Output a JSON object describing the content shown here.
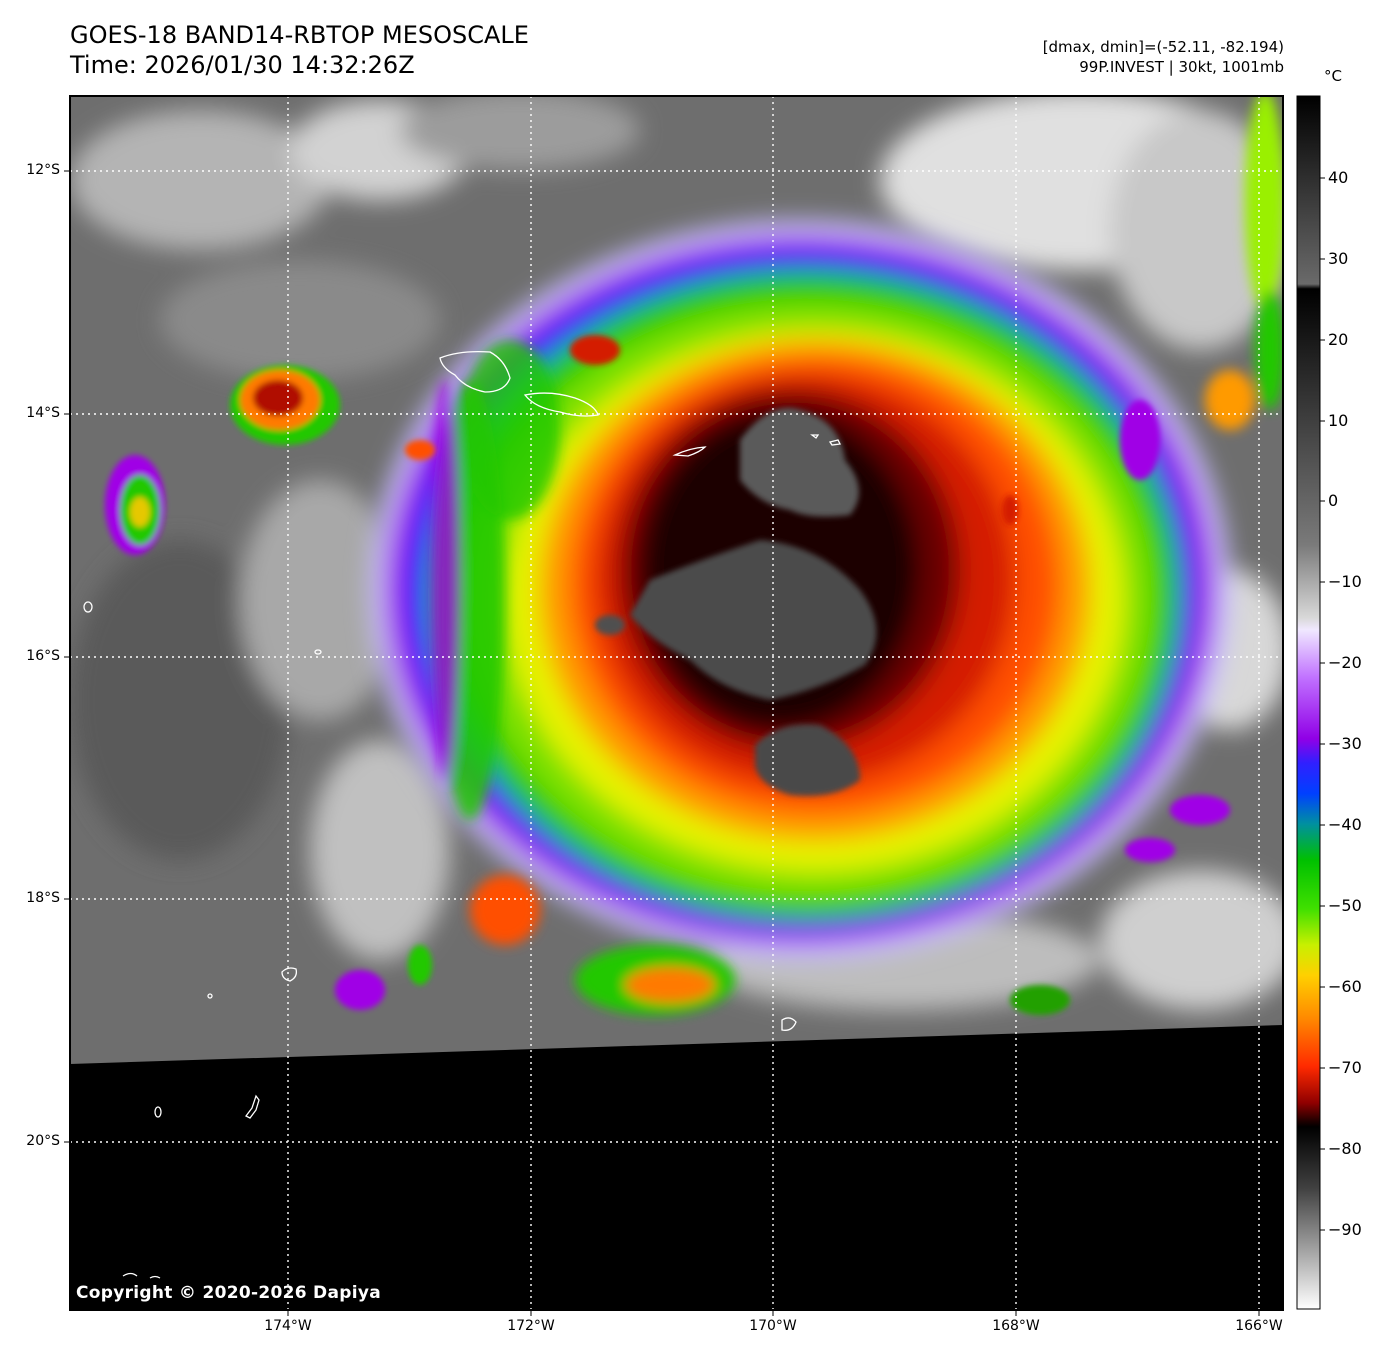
{
  "header": {
    "title": "GOES-18 BAND14-RBTOP MESOSCALE",
    "time": "Time: 2026/01/30 14:32:26Z",
    "dmax_dmin": "[dmax, dmin]=(-52.11, -82.194)",
    "storm": "99P.INVEST | 30kt, 1001mb"
  },
  "map": {
    "lat_labels": [
      "12°S",
      "14°S",
      "16°S",
      "18°S",
      "20°S"
    ],
    "lon_labels": [
      "174°W",
      "172°W",
      "170°W",
      "168°W",
      "166°W"
    ],
    "copyright": "Copyright © 2020-2026 Dapiya"
  },
  "colorbar": {
    "unit": "°C",
    "ticks": [
      "40",
      "30",
      "20",
      "10",
      "0",
      "−10",
      "−20",
      "−30",
      "−40",
      "−50",
      "−60",
      "−70",
      "−80",
      "−90"
    ]
  },
  "colors": {
    "cold_core": "#1a0000",
    "red": "#d41a00",
    "orange": "#ff7a00",
    "yellow": "#e6f200",
    "green": "#22d400",
    "blue": "#1a2bff",
    "purple": "#a000e6",
    "no_data": "#000000"
  }
}
